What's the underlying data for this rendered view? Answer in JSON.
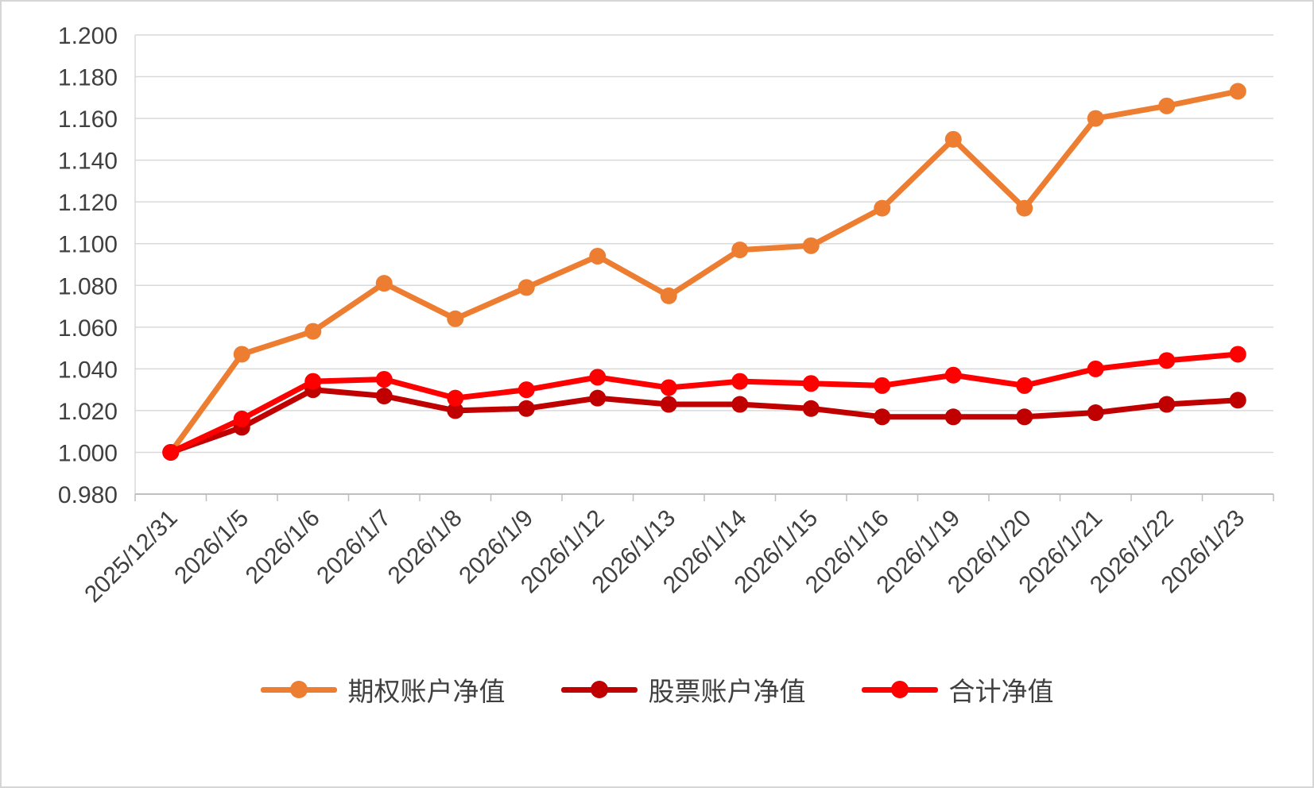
{
  "chart_data": {
    "type": "line",
    "title": "",
    "xlabel": "",
    "ylabel": "",
    "categories": [
      "2025/12/31",
      "2026/1/5",
      "2026/1/6",
      "2026/1/7",
      "2026/1/8",
      "2026/1/9",
      "2026/1/12",
      "2026/1/13",
      "2026/1/14",
      "2026/1/15",
      "2026/1/16",
      "2026/1/19",
      "2026/1/20",
      "2026/1/21",
      "2026/1/22",
      "2026/1/23"
    ],
    "series": [
      {
        "name": "期权账户净值",
        "color": "#ED7D31",
        "values": [
          1.0,
          1.047,
          1.058,
          1.081,
          1.064,
          1.079,
          1.094,
          1.075,
          1.097,
          1.099,
          1.117,
          1.15,
          1.117,
          1.16,
          1.166,
          1.173
        ]
      },
      {
        "name": "股票账户净值",
        "color": "#C00000",
        "values": [
          1.0,
          1.012,
          1.03,
          1.027,
          1.02,
          1.021,
          1.026,
          1.023,
          1.023,
          1.021,
          1.017,
          1.017,
          1.017,
          1.019,
          1.023,
          1.025
        ]
      },
      {
        "name": "合计净值",
        "color": "#FF0000",
        "values": [
          1.0,
          1.016,
          1.034,
          1.035,
          1.026,
          1.03,
          1.036,
          1.031,
          1.034,
          1.033,
          1.032,
          1.037,
          1.032,
          1.04,
          1.044,
          1.047
        ]
      }
    ],
    "ylim": [
      0.98,
      1.2
    ],
    "ytick_step": 0.02,
    "ytick_decimals": 3,
    "grid": true,
    "legend_position": "bottom",
    "axis_color": "#BFBFBF",
    "grid_color": "#D9D9D9",
    "text_color": "#404040",
    "background_color": "#FFFFFF"
  }
}
